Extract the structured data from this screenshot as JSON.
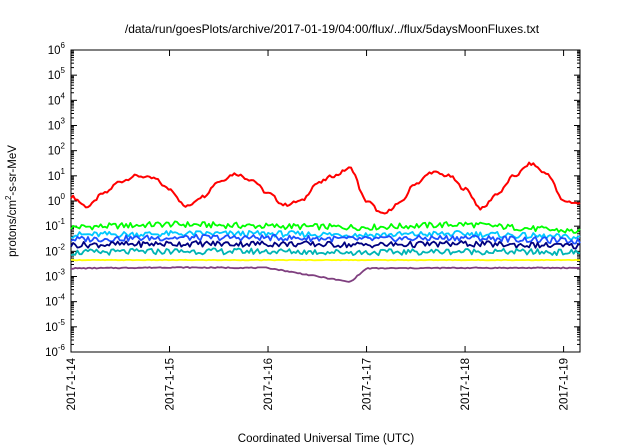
{
  "chart_data": {
    "type": "line",
    "title": "/data/run/goesPlots/archive/2017-01-19/04:00/flux/../flux/5daysMoonFluxes.txt",
    "xlabel": "Coordinated Universal Time (UTC)",
    "ylabel": "protons/cm²-s-sr-MeV",
    "ylabel_parts": {
      "pre": "protons/cm",
      "sup": "2",
      "post": "-s-sr-MeV"
    },
    "y_scale": "log",
    "ylim": [
      1e-06,
      1000000.0
    ],
    "y_ticks": [
      {
        "base": "10",
        "exp": "-6",
        "value": 1e-06
      },
      {
        "base": "10",
        "exp": "-5",
        "value": 1e-05
      },
      {
        "base": "10",
        "exp": "-4",
        "value": 0.0001
      },
      {
        "base": "10",
        "exp": "-3",
        "value": 0.001
      },
      {
        "base": "10",
        "exp": "-2",
        "value": 0.01
      },
      {
        "base": "10",
        "exp": "-1",
        "value": 0.1
      },
      {
        "base": "10",
        "exp": "0",
        "value": 1
      },
      {
        "base": "10",
        "exp": "1",
        "value": 10
      },
      {
        "base": "10",
        "exp": "2",
        "value": 100
      },
      {
        "base": "10",
        "exp": "3",
        "value": 1000
      },
      {
        "base": "10",
        "exp": "4",
        "value": 10000
      },
      {
        "base": "10",
        "exp": "5",
        "value": 100000
      },
      {
        "base": "10",
        "exp": "6",
        "value": 1000000
      }
    ],
    "xlim": [
      "2017-01-14T00:00",
      "2017-01-19T04:00"
    ],
    "x_ticks": [
      "2017-1-14",
      "2017-1-15",
      "2017-1-16",
      "2017-1-17",
      "2017-1-18",
      "2017-1-19"
    ],
    "x_tick_dates": [
      "2017-01-14",
      "2017-01-15",
      "2017-01-16",
      "2017-01-17",
      "2017-01-18",
      "2017-01-19"
    ],
    "grid": false,
    "legend": "none",
    "series": [
      {
        "color": "#ff0000",
        "x": [
          "2017-01-14T00:00",
          "2017-01-14T04:00",
          "2017-01-14T08:00",
          "2017-01-14T12:00",
          "2017-01-14T16:00",
          "2017-01-14T20:00",
          "2017-01-15T00:00",
          "2017-01-15T04:00",
          "2017-01-15T08:00",
          "2017-01-15T12:00",
          "2017-01-15T16:00",
          "2017-01-15T20:00",
          "2017-01-16T00:00",
          "2017-01-16T04:00",
          "2017-01-16T08:00",
          "2017-01-16T12:00",
          "2017-01-16T16:00",
          "2017-01-16T20:00",
          "2017-01-17T00:00",
          "2017-01-17T04:00",
          "2017-01-17T08:00",
          "2017-01-17T12:00",
          "2017-01-17T16:00",
          "2017-01-17T20:00",
          "2017-01-18T00:00",
          "2017-01-18T04:00",
          "2017-01-18T08:00",
          "2017-01-18T12:00",
          "2017-01-18T16:00",
          "2017-01-18T20:00",
          "2017-01-19T00:00",
          "2017-01-19T04:00"
        ],
        "y": [
          1.5,
          0.6,
          2,
          6,
          10,
          8,
          3,
          0.6,
          1.5,
          6,
          12,
          7,
          2,
          0.7,
          1,
          5,
          10,
          20,
          1,
          0.3,
          0.8,
          5,
          14,
          10,
          3,
          0.5,
          2,
          10,
          30,
          12,
          1,
          0.8
        ]
      },
      {
        "color": "#00ff00",
        "x": [
          "2017-01-14T00:00",
          "2017-01-15T00:00",
          "2017-01-16T00:00",
          "2017-01-17T00:00",
          "2017-01-18T00:00",
          "2017-01-19T04:00"
        ],
        "y": [
          0.09,
          0.12,
          0.1,
          0.09,
          0.12,
          0.06
        ]
      },
      {
        "color": "#00c8ff",
        "x": [
          "2017-01-14T00:00",
          "2017-01-15T00:00",
          "2017-01-16T00:00",
          "2017-01-17T00:00",
          "2017-01-18T00:00",
          "2017-01-19T04:00"
        ],
        "y": [
          0.045,
          0.05,
          0.05,
          0.045,
          0.05,
          0.035
        ]
      },
      {
        "color": "#1e50ff",
        "x": [
          "2017-01-14T00:00",
          "2017-01-15T00:00",
          "2017-01-16T00:00",
          "2017-01-17T00:00",
          "2017-01-18T00:00",
          "2017-01-19T04:00"
        ],
        "y": [
          0.03,
          0.035,
          0.035,
          0.03,
          0.035,
          0.025
        ]
      },
      {
        "color": "#00007f",
        "x": [
          "2017-01-14T00:00",
          "2017-01-15T00:00",
          "2017-01-16T00:00",
          "2017-01-17T00:00",
          "2017-01-18T00:00",
          "2017-01-19T04:00"
        ],
        "y": [
          0.018,
          0.02,
          0.02,
          0.018,
          0.02,
          0.016
        ]
      },
      {
        "color": "#00b4b4",
        "x": [
          "2017-01-14T00:00",
          "2017-01-15T00:00",
          "2017-01-16T00:00",
          "2017-01-17T00:00",
          "2017-01-18T00:00",
          "2017-01-19T04:00"
        ],
        "y": [
          0.009,
          0.01,
          0.01,
          0.009,
          0.01,
          0.009
        ]
      },
      {
        "color": "#ffff00",
        "x": [
          "2017-01-14T00:00",
          "2017-01-19T04:00"
        ],
        "y": [
          0.0045,
          0.0045
        ]
      },
      {
        "color": "#7f3f7f",
        "x": [
          "2017-01-14T00:00",
          "2017-01-15T00:00",
          "2017-01-16T00:00",
          "2017-01-16T20:00",
          "2017-01-17T00:00",
          "2017-01-18T00:00",
          "2017-01-19T04:00"
        ],
        "y": [
          0.0021,
          0.0023,
          0.0022,
          0.0006,
          0.0021,
          0.0022,
          0.0022
        ]
      }
    ]
  }
}
